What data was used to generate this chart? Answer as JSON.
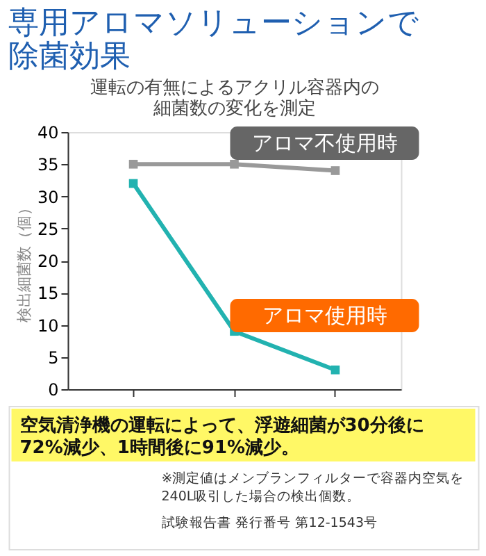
{
  "chart_data": {
    "type": "line",
    "title": "専用アロマソリューションで除菌効果",
    "subtitle": "運転の有無によるアクリル容器内の細菌数の変化を測定",
    "ylabel": "検出細菌数（個）",
    "categories": [
      null,
      null,
      null
    ],
    "series": [
      {
        "name": "アロマ不使用時",
        "color": "#999999",
        "values": [
          35,
          35,
          34
        ]
      },
      {
        "name": "アロマ使用時",
        "color": "#22b2b0",
        "values": [
          32,
          9,
          3
        ]
      }
    ],
    "ylim": [
      0,
      40
    ],
    "yticks": [
      0,
      5,
      10,
      15,
      20,
      25,
      30,
      35,
      40
    ],
    "marker": "square",
    "line_style": "solid",
    "grid": false,
    "legend": false,
    "tick_labels": "y",
    "annotations": [
      "空気清浄機の運転によって、浮遊細菌が30分後に72%減少、1時間後に91%減少。",
      "※測定値はメンブランフィルターで容器内空気を240L吸引した場合の検出個数。",
      "試験報告書 発行番号 第12-1543号"
    ]
  }
}
